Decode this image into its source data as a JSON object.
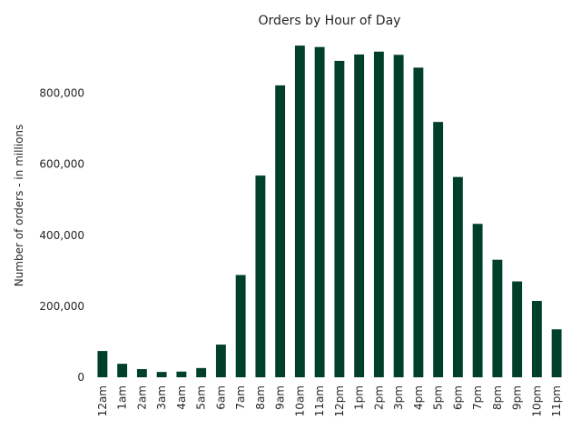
{
  "chart_data": {
    "type": "bar",
    "title": "Orders by Hour of Day",
    "xlabel": "",
    "ylabel": "Number of orders - in millions",
    "categories": [
      "12am",
      "1am",
      "2am",
      "3am",
      "4am",
      "5am",
      "6am",
      "7am",
      "8am",
      "9am",
      "10am",
      "11am",
      "12pm",
      "1pm",
      "2pm",
      "3pm",
      "4pm",
      "5pm",
      "6pm",
      "7pm",
      "8pm",
      "9pm",
      "10pm",
      "11pm"
    ],
    "values": [
      74000,
      38000,
      23000,
      15000,
      16000,
      26000,
      92000,
      288000,
      568000,
      822000,
      934000,
      930000,
      891000,
      909000,
      917000,
      908000,
      872000,
      719000,
      564000,
      432000,
      331000,
      270000,
      215000,
      135000
    ],
    "ylim": [
      0,
      960000
    ],
    "yticks": [
      0,
      200000,
      400000,
      600000,
      800000
    ],
    "ytick_labels": [
      "0",
      "200,000",
      "400,000",
      "600,000",
      "800,000"
    ],
    "bar_color": "#003f2b",
    "grid": false,
    "legend": "none"
  }
}
